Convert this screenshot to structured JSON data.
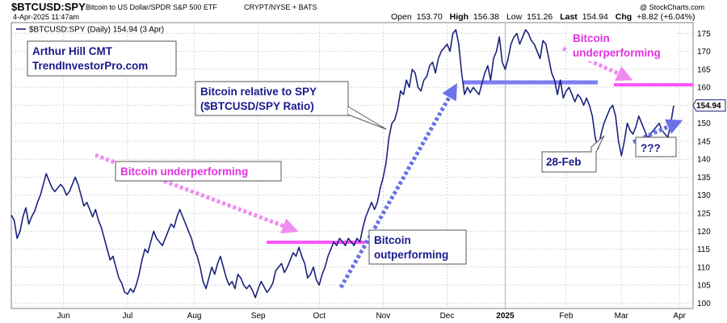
{
  "header": {
    "symbol": "$BTCUSD:SPY",
    "description": "Bitcoin to US Dollar/SPDR S&P 500 ETF",
    "exchange": "CRYPT/NYSE + BATS",
    "timestamp": "4-Apr-2025 11:47am",
    "credit": "@ StockCharts.com",
    "open_label": "Open",
    "open_value": "153.70",
    "high_label": "High",
    "high_value": "156.38",
    "low_label": "Low",
    "low_value": "151.26",
    "last_label": "Last",
    "last_value": "154.94",
    "chg_label": "Chg",
    "chg_value": "+8.82 (+6.04%)"
  },
  "legend": {
    "text": "$BTCUSD:SPY (Daily) 154.94 (3 Apr)"
  },
  "colors": {
    "line": "#1a237e",
    "pink": "#ff40ff",
    "pink_dash": "#f08cf0",
    "blue_dash": "#6b72e8",
    "blue_level": "#7b7ff0",
    "text_navy": "#1a1a8c"
  },
  "annotations": {
    "author_line1": "Arthur Hill CMT",
    "author_line2": "TrendInvestorPro.com",
    "relative_line1": "Bitcoin relative to SPY",
    "relative_line2": "($BTCUSD/SPY Ratio)",
    "underperf_left": "Bitcoin underperforming",
    "outperf_line1": "Bitcoin",
    "outperf_line2": "outperforming",
    "underperf_right_line1": "Bitcoin",
    "underperf_right_line2": "underperforming",
    "feb28": "28-Feb",
    "question": "???"
  },
  "chart_data": {
    "type": "line",
    "y_ticks": [
      100,
      105,
      110,
      115,
      120,
      125,
      130,
      135,
      140,
      145,
      150,
      155,
      160,
      165,
      170,
      175
    ],
    "ylim": [
      98.5,
      178
    ],
    "x_ticks": [
      {
        "label": "Jun",
        "index": 18,
        "bold": false
      },
      {
        "label": "Jul",
        "index": 40,
        "bold": false
      },
      {
        "label": "Aug",
        "index": 63,
        "bold": false
      },
      {
        "label": "Sep",
        "index": 85,
        "bold": false
      },
      {
        "label": "Oct",
        "index": 106,
        "bold": false
      },
      {
        "label": "Nov",
        "index": 128,
        "bold": false
      },
      {
        "label": "Dec",
        "index": 150,
        "bold": false
      },
      {
        "label": "2025",
        "index": 170,
        "bold": true
      },
      {
        "label": "Feb",
        "index": 191,
        "bold": false
      },
      {
        "label": "Mar",
        "index": 210,
        "bold": false
      },
      {
        "label": "Apr",
        "index": 230,
        "bold": false
      }
    ],
    "last_value_label": "154.94",
    "series": [
      {
        "name": "$BTCUSD:SPY",
        "values": [
          124.5,
          123,
          118,
          120,
          124,
          126.5,
          122,
          124,
          125.5,
          128,
          130,
          133,
          136,
          134,
          132,
          131,
          132,
          133,
          132,
          130,
          131,
          133,
          135,
          133,
          130,
          127,
          128,
          126,
          124,
          126,
          123,
          121,
          118,
          115,
          112,
          113,
          110,
          107,
          105.5,
          103,
          102.5,
          104,
          103,
          105,
          108,
          112,
          115,
          114,
          117,
          120,
          118,
          117,
          116,
          118,
          120,
          122,
          121,
          124,
          126,
          124,
          122,
          120,
          118,
          115,
          113,
          110,
          106,
          104,
          107,
          110,
          108,
          111,
          113,
          110,
          107,
          105,
          106,
          104,
          108,
          107,
          105,
          104,
          105,
          103.5,
          101.5,
          104,
          106,
          104.5,
          103,
          104,
          105.5,
          109,
          110,
          111,
          108.5,
          110,
          112,
          114,
          113,
          115.5,
          113,
          111,
          107,
          108,
          110,
          106.5,
          105,
          108,
          110,
          113,
          115,
          117,
          116,
          118,
          117,
          116,
          118,
          117,
          116,
          118,
          117,
          121,
          124,
          126,
          128,
          126,
          128,
          132,
          135,
          139,
          146,
          150,
          151,
          154,
          159,
          158,
          162,
          160,
          165,
          164,
          160,
          159,
          162,
          163,
          166,
          167,
          164,
          168,
          170,
          171,
          172,
          170,
          175,
          176,
          172,
          164,
          158,
          160,
          158.5,
          160,
          159,
          158,
          161,
          164,
          166,
          162,
          168,
          170,
          174,
          167,
          165,
          168,
          172,
          174,
          175,
          172,
          174,
          176,
          175,
          173,
          172,
          170,
          168,
          173,
          172,
          168,
          164,
          162,
          158,
          162,
          157,
          159,
          160,
          158,
          156,
          158,
          157,
          155,
          157,
          155,
          152,
          146,
          143,
          147,
          150,
          152,
          154,
          155,
          152,
          145,
          141,
          145,
          150,
          148,
          147,
          149,
          152,
          150,
          148,
          146,
          147,
          148,
          149,
          150,
          148,
          147,
          146.12,
          150,
          154.94
        ]
      }
    ]
  }
}
